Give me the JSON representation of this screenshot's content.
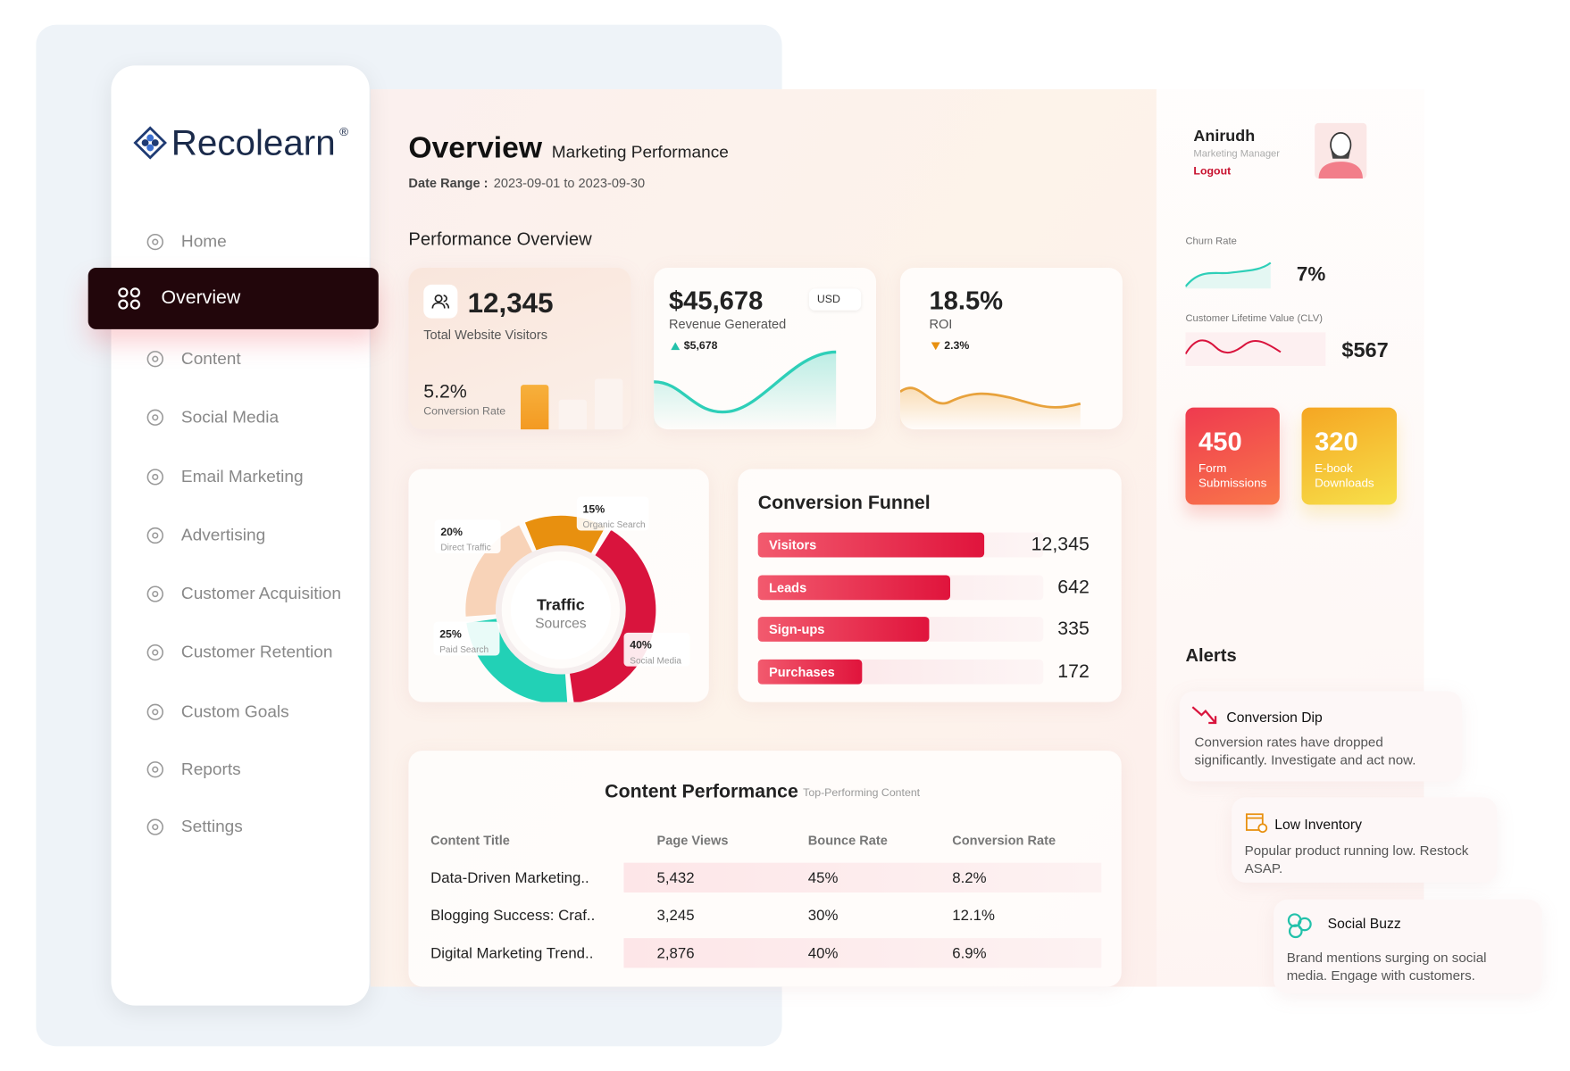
{
  "brand": {
    "name": "Recolearn",
    "mark": "®"
  },
  "nav": [
    "Home",
    "Overview",
    "Content",
    "Social Media",
    "Email Marketing",
    "Advertising",
    "Customer Acquisition",
    "Customer Retention",
    "Custom Goals",
    "Reports",
    "Settings"
  ],
  "header": {
    "title": "Overview",
    "subtitle": "Marketing Performance",
    "date_range_label": "Date Range :",
    "date_range": "2023-09-01 to 2023-09-30"
  },
  "performance": {
    "title": "Performance Overview",
    "visitors": {
      "value": "12,345",
      "label": "Total Website Visitors",
      "rate": "5.2%",
      "rate_label": "Conversion Rate"
    },
    "revenue": {
      "value": "$45,678",
      "label": "Revenue Generated",
      "currency": "USD",
      "change": "$5,678"
    },
    "roi": {
      "value": "18.5%",
      "label": "ROI",
      "change": "2.3%"
    }
  },
  "traffic": {
    "title": "Traffic",
    "subtitle": "Sources",
    "segments": [
      {
        "value": 15,
        "label": "15%",
        "name": "Organic Search",
        "color": "#e8900f"
      },
      {
        "value": 20,
        "label": "20%",
        "name": "Direct Traffic",
        "color": "#f8d3b8"
      },
      {
        "value": 25,
        "label": "25%",
        "name": "Paid Search",
        "color": "#22d1b6"
      },
      {
        "value": 40,
        "label": "40%",
        "name": "Social Media",
        "color": "#d9143d"
      }
    ]
  },
  "funnel": {
    "title": "Conversion Funnel",
    "rows": [
      {
        "stage": "Visitors",
        "value": "12,345"
      },
      {
        "stage": "Leads",
        "value": "642"
      },
      {
        "stage": "Sign-ups",
        "value": "335"
      },
      {
        "stage": "Purchases",
        "value": "172"
      }
    ]
  },
  "content": {
    "title": "Content Performance",
    "subtitle": "Top-Performing Content",
    "columns": [
      "Content Title",
      "Page Views",
      "Bounce Rate",
      "Conversion Rate"
    ],
    "rows": [
      [
        "Data-Driven Marketing..",
        "5,432",
        "45%",
        "8.2%"
      ],
      [
        "Blogging Success: Craf..",
        "3,245",
        "30%",
        "12.1%"
      ],
      [
        "Digital Marketing Trend..",
        "2,876",
        "40%",
        "6.9%"
      ]
    ]
  },
  "profile": {
    "name": "Anirudh",
    "role": "Marketing Manager",
    "logout": "Logout"
  },
  "metrics": {
    "churn_label": "Churn Rate",
    "churn": "7%",
    "clv_label": "Customer Lifetime Value (CLV)",
    "clv": "$567"
  },
  "tiles": [
    {
      "value": "450",
      "label": "Form Submissions"
    },
    {
      "value": "320",
      "label": "E-book Downloads"
    }
  ],
  "alerts": {
    "title": "Alerts",
    "items": [
      {
        "title": "Conversion Dip",
        "text": "Conversion rates have dropped significantly. Investigate and act now."
      },
      {
        "title": "Low Inventory",
        "text": "Popular product running low. Restock ASAP."
      },
      {
        "title": "Social Buzz",
        "text": "Brand mentions surging on social media. Engage with customers."
      }
    ]
  }
}
